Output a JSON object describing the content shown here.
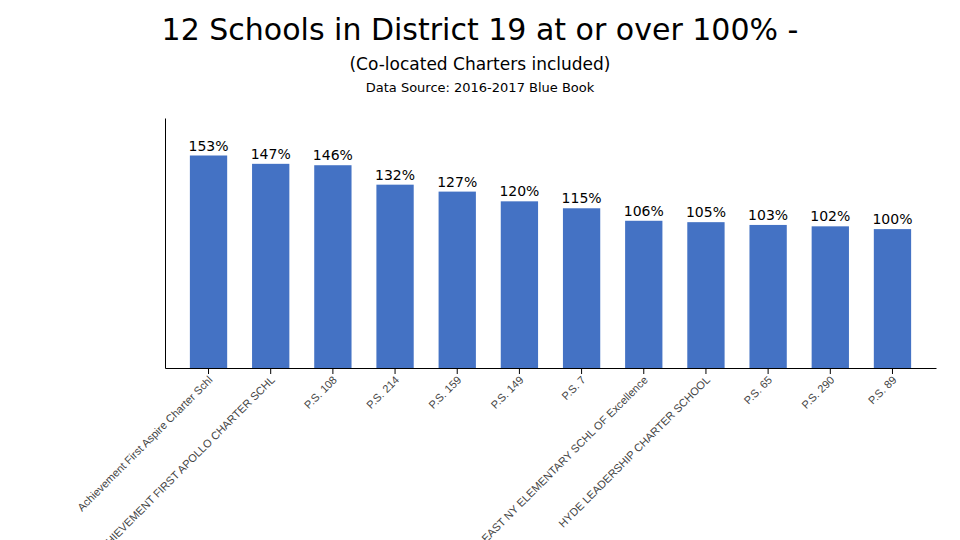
{
  "chart_data": {
    "type": "bar",
    "title": "12 Schools in District 19 at or over 100% -",
    "subtitle": "(Co-located Charters included)",
    "annotations": [
      "Data Source: 2016-2017 Blue Book"
    ],
    "categories": [
      "Achievement First Aspire Charter Schl",
      "ACHIEVEMENT FIRST APOLLO CHARTER SCHL",
      "P.S. 108",
      "P.S. 214",
      "P.S. 159",
      "P.S. 149",
      "P.S. 7",
      "EAST NY ELEMENTARY SCHL OF Excellence",
      "HYDE LEADERSHIP CHARTER SCHOOL",
      "P.S. 65",
      "P.S. 290",
      "P.S. 89"
    ],
    "values": [
      153,
      147,
      146,
      132,
      127,
      120,
      115,
      106,
      105,
      103,
      102,
      100
    ],
    "value_labels": [
      "153%",
      "147%",
      "146%",
      "132%",
      "127%",
      "120%",
      "115%",
      "106%",
      "105%",
      "103%",
      "102%",
      "100%"
    ],
    "data_labels": true,
    "color": "#4472C4",
    "ylim": [
      0,
      180
    ],
    "grid": false,
    "tick_labels": "x"
  }
}
